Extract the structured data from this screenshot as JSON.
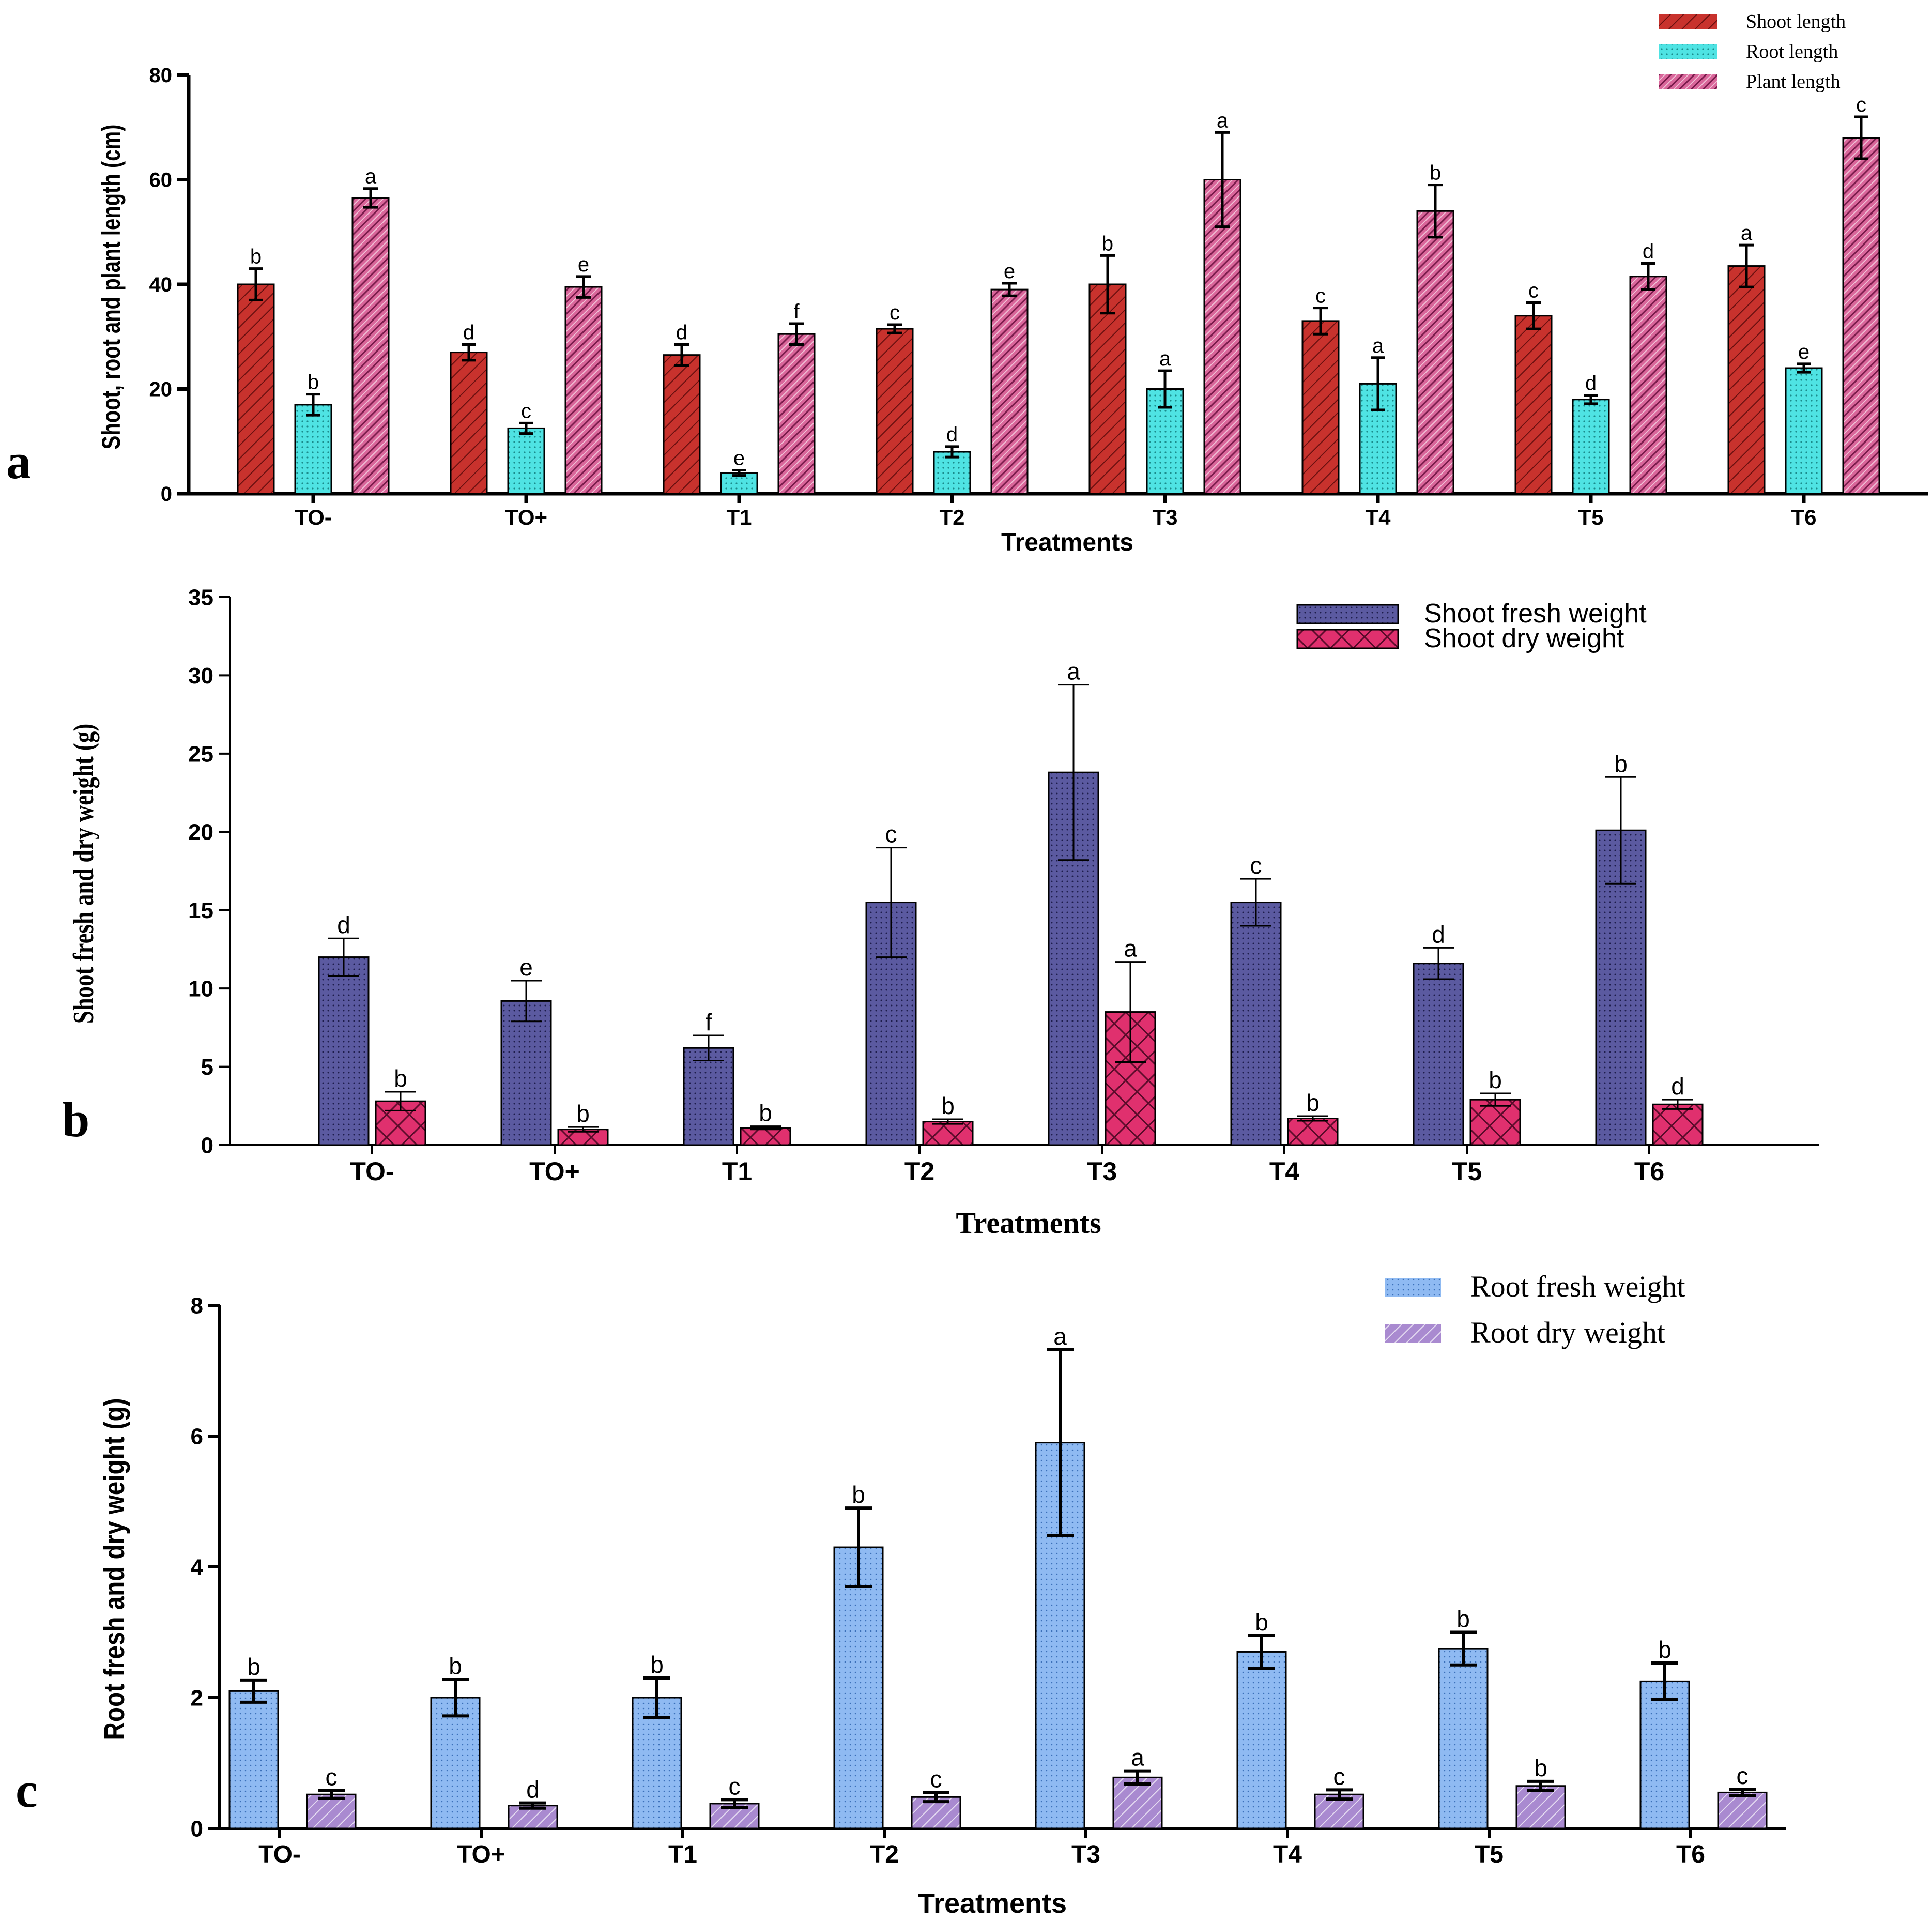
{
  "colors": {
    "shoot_length": "#c8322d",
    "root_length": "#4fe3e3",
    "plant_length": "#d9669a",
    "shoot_fresh": "#5b5aa0",
    "shoot_dry": "#e0306e",
    "root_fresh": "#8fbaf2",
    "root_dry": "#a98ad0"
  },
  "chart_data": [
    {
      "id": "a",
      "panel_label": "a",
      "type": "bar",
      "title": "",
      "xlabel": "Treatments",
      "ylabel": "Shoot, root and plant length (cm)",
      "ylim": [
        0,
        80
      ],
      "yticks": [
        "0",
        "20",
        "40",
        "60",
        "80"
      ],
      "categories": [
        "TO-",
        "TO+",
        "T1",
        "T2",
        "T3",
        "T4",
        "T5",
        "T6"
      ],
      "legend_position": "top-right",
      "series": [
        {
          "name": "Shoot length",
          "color": "#c8322d",
          "pattern": "diag",
          "values": [
            40,
            27,
            26.5,
            31.5,
            40,
            33,
            34,
            43.5
          ],
          "errors": [
            3,
            1.5,
            2,
            0.8,
            5.5,
            2.5,
            2.5,
            4
          ],
          "letters": [
            "b",
            "d",
            "d",
            "c",
            "b",
            "c",
            "c",
            "a"
          ]
        },
        {
          "name": "Root length",
          "color": "#4fe3e3",
          "pattern": "dots",
          "values": [
            17,
            12.5,
            4,
            8,
            20,
            21,
            18,
            24
          ],
          "errors": [
            2,
            1,
            0.5,
            1,
            3.5,
            5,
            0.8,
            0.8
          ],
          "letters": [
            "b",
            "c",
            "e",
            "d",
            "a",
            "a",
            "d",
            "e"
          ]
        },
        {
          "name": "Plant length",
          "color": "#d9669a",
          "pattern": "wave",
          "values": [
            56.5,
            39.5,
            30.5,
            39,
            60,
            54,
            41.5,
            68
          ],
          "errors": [
            1.8,
            2,
            2,
            1.2,
            9,
            5,
            2.5,
            4
          ],
          "letters": [
            "a",
            "e",
            "f",
            "e",
            "a",
            "b",
            "d",
            "c"
          ]
        }
      ]
    },
    {
      "id": "b",
      "panel_label": "b",
      "type": "bar",
      "title": "",
      "xlabel": "Treatments",
      "ylabel": "Shoot fresh and dry weight (g)",
      "ylim": [
        0,
        35
      ],
      "yticks": [
        "0",
        "5",
        "10",
        "15",
        "20",
        "25",
        "30",
        "35"
      ],
      "categories": [
        "TO-",
        "TO+",
        "T1",
        "T2",
        "T3",
        "T4",
        "T5",
        "T6"
      ],
      "legend_position": "top-right",
      "series": [
        {
          "name": "Shoot fresh weight",
          "color": "#5b5aa0",
          "pattern": "dots",
          "values": [
            12,
            9.2,
            6.2,
            15.5,
            23.8,
            15.5,
            11.6,
            20.1
          ],
          "errors": [
            1.2,
            1.3,
            0.8,
            3.5,
            5.6,
            1.5,
            1,
            3.4
          ],
          "letters": [
            "d",
            "e",
            "f",
            "c",
            "a",
            "c",
            "d",
            "b"
          ]
        },
        {
          "name": "Shoot dry weight",
          "color": "#e0306e",
          "pattern": "cross",
          "values": [
            2.8,
            1,
            1.1,
            1.5,
            8.5,
            1.7,
            2.9,
            2.6
          ],
          "errors": [
            0.6,
            0.15,
            0.1,
            0.15,
            3.2,
            0.15,
            0.4,
            0.3
          ],
          "letters": [
            "b",
            "b",
            "b",
            "b",
            "a",
            "b",
            "b",
            "d"
          ]
        }
      ]
    },
    {
      "id": "c",
      "panel_label": "c",
      "type": "bar",
      "title": "",
      "xlabel": "Treatments",
      "ylabel": "Root fresh and dry weight (g)",
      "ylim": [
        0,
        8
      ],
      "yticks": [
        "0",
        "2",
        "4",
        "6",
        "8"
      ],
      "categories": [
        "TO-",
        "TO+",
        "T1",
        "T2",
        "T3",
        "T4",
        "T5",
        "T6"
      ],
      "legend_position": "top-right",
      "series": [
        {
          "name": "Root fresh weight",
          "color": "#8fbaf2",
          "pattern": "dots",
          "values": [
            2.1,
            2,
            2,
            4.3,
            5.9,
            2.7,
            2.75,
            2.25
          ],
          "errors": [
            0.17,
            0.28,
            0.3,
            0.6,
            1.42,
            0.25,
            0.25,
            0.28
          ],
          "letters": [
            "b",
            "b",
            "b",
            "b",
            "a",
            "b",
            "b",
            "b"
          ]
        },
        {
          "name": "Root dry weight",
          "color": "#a98ad0",
          "pattern": "diag",
          "values": [
            0.52,
            0.35,
            0.38,
            0.48,
            0.78,
            0.52,
            0.65,
            0.55
          ],
          "errors": [
            0.06,
            0.04,
            0.06,
            0.07,
            0.1,
            0.07,
            0.07,
            0.05
          ],
          "letters": [
            "c",
            "d",
            "c",
            "c",
            "a",
            "c",
            "b",
            "c"
          ]
        }
      ]
    }
  ]
}
